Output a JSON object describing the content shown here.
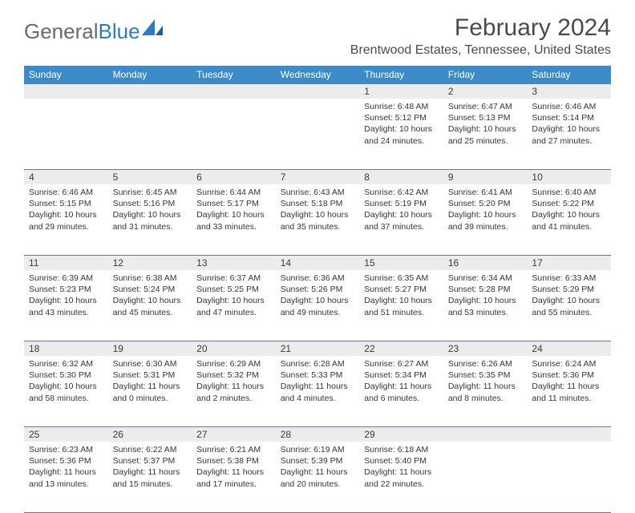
{
  "brand": {
    "part1": "General",
    "part2": "Blue"
  },
  "title": "February 2024",
  "location": "Brentwood Estates, Tennessee, United States",
  "colors": {
    "header_bg": "#3b8bc9",
    "header_text": "#ffffff",
    "daynum_bg": "#ececec",
    "rule": "#5c7fa0",
    "body_text": "#353535",
    "title_text": "#4a4a4a",
    "brand_gray": "#6a6a6a",
    "brand_blue": "#2b7cc0",
    "page_bg": "#ffffff"
  },
  "layout": {
    "columns": 7,
    "font_family": "Arial",
    "body_fontsize_pt": 8,
    "title_fontsize_pt": 22,
    "location_fontsize_pt": 12,
    "weekday_fontsize_pt": 9
  },
  "weekdays": [
    "Sunday",
    "Monday",
    "Tuesday",
    "Wednesday",
    "Thursday",
    "Friday",
    "Saturday"
  ],
  "weeks": [
    [
      null,
      null,
      null,
      null,
      {
        "n": "1",
        "sr": "Sunrise: 6:48 AM",
        "ss": "Sunset: 5:12 PM",
        "d1": "Daylight: 10 hours",
        "d2": "and 24 minutes."
      },
      {
        "n": "2",
        "sr": "Sunrise: 6:47 AM",
        "ss": "Sunset: 5:13 PM",
        "d1": "Daylight: 10 hours",
        "d2": "and 25 minutes."
      },
      {
        "n": "3",
        "sr": "Sunrise: 6:46 AM",
        "ss": "Sunset: 5:14 PM",
        "d1": "Daylight: 10 hours",
        "d2": "and 27 minutes."
      }
    ],
    [
      {
        "n": "4",
        "sr": "Sunrise: 6:46 AM",
        "ss": "Sunset: 5:15 PM",
        "d1": "Daylight: 10 hours",
        "d2": "and 29 minutes."
      },
      {
        "n": "5",
        "sr": "Sunrise: 6:45 AM",
        "ss": "Sunset: 5:16 PM",
        "d1": "Daylight: 10 hours",
        "d2": "and 31 minutes."
      },
      {
        "n": "6",
        "sr": "Sunrise: 6:44 AM",
        "ss": "Sunset: 5:17 PM",
        "d1": "Daylight: 10 hours",
        "d2": "and 33 minutes."
      },
      {
        "n": "7",
        "sr": "Sunrise: 6:43 AM",
        "ss": "Sunset: 5:18 PM",
        "d1": "Daylight: 10 hours",
        "d2": "and 35 minutes."
      },
      {
        "n": "8",
        "sr": "Sunrise: 6:42 AM",
        "ss": "Sunset: 5:19 PM",
        "d1": "Daylight: 10 hours",
        "d2": "and 37 minutes."
      },
      {
        "n": "9",
        "sr": "Sunrise: 6:41 AM",
        "ss": "Sunset: 5:20 PM",
        "d1": "Daylight: 10 hours",
        "d2": "and 39 minutes."
      },
      {
        "n": "10",
        "sr": "Sunrise: 6:40 AM",
        "ss": "Sunset: 5:22 PM",
        "d1": "Daylight: 10 hours",
        "d2": "and 41 minutes."
      }
    ],
    [
      {
        "n": "11",
        "sr": "Sunrise: 6:39 AM",
        "ss": "Sunset: 5:23 PM",
        "d1": "Daylight: 10 hours",
        "d2": "and 43 minutes."
      },
      {
        "n": "12",
        "sr": "Sunrise: 6:38 AM",
        "ss": "Sunset: 5:24 PM",
        "d1": "Daylight: 10 hours",
        "d2": "and 45 minutes."
      },
      {
        "n": "13",
        "sr": "Sunrise: 6:37 AM",
        "ss": "Sunset: 5:25 PM",
        "d1": "Daylight: 10 hours",
        "d2": "and 47 minutes."
      },
      {
        "n": "14",
        "sr": "Sunrise: 6:36 AM",
        "ss": "Sunset: 5:26 PM",
        "d1": "Daylight: 10 hours",
        "d2": "and 49 minutes."
      },
      {
        "n": "15",
        "sr": "Sunrise: 6:35 AM",
        "ss": "Sunset: 5:27 PM",
        "d1": "Daylight: 10 hours",
        "d2": "and 51 minutes."
      },
      {
        "n": "16",
        "sr": "Sunrise: 6:34 AM",
        "ss": "Sunset: 5:28 PM",
        "d1": "Daylight: 10 hours",
        "d2": "and 53 minutes."
      },
      {
        "n": "17",
        "sr": "Sunrise: 6:33 AM",
        "ss": "Sunset: 5:29 PM",
        "d1": "Daylight: 10 hours",
        "d2": "and 55 minutes."
      }
    ],
    [
      {
        "n": "18",
        "sr": "Sunrise: 6:32 AM",
        "ss": "Sunset: 5:30 PM",
        "d1": "Daylight: 10 hours",
        "d2": "and 58 minutes."
      },
      {
        "n": "19",
        "sr": "Sunrise: 6:30 AM",
        "ss": "Sunset: 5:31 PM",
        "d1": "Daylight: 11 hours",
        "d2": "and 0 minutes."
      },
      {
        "n": "20",
        "sr": "Sunrise: 6:29 AM",
        "ss": "Sunset: 5:32 PM",
        "d1": "Daylight: 11 hours",
        "d2": "and 2 minutes."
      },
      {
        "n": "21",
        "sr": "Sunrise: 6:28 AM",
        "ss": "Sunset: 5:33 PM",
        "d1": "Daylight: 11 hours",
        "d2": "and 4 minutes."
      },
      {
        "n": "22",
        "sr": "Sunrise: 6:27 AM",
        "ss": "Sunset: 5:34 PM",
        "d1": "Daylight: 11 hours",
        "d2": "and 6 minutes."
      },
      {
        "n": "23",
        "sr": "Sunrise: 6:26 AM",
        "ss": "Sunset: 5:35 PM",
        "d1": "Daylight: 11 hours",
        "d2": "and 8 minutes."
      },
      {
        "n": "24",
        "sr": "Sunrise: 6:24 AM",
        "ss": "Sunset: 5:36 PM",
        "d1": "Daylight: 11 hours",
        "d2": "and 11 minutes."
      }
    ],
    [
      {
        "n": "25",
        "sr": "Sunrise: 6:23 AM",
        "ss": "Sunset: 5:36 PM",
        "d1": "Daylight: 11 hours",
        "d2": "and 13 minutes."
      },
      {
        "n": "26",
        "sr": "Sunrise: 6:22 AM",
        "ss": "Sunset: 5:37 PM",
        "d1": "Daylight: 11 hours",
        "d2": "and 15 minutes."
      },
      {
        "n": "27",
        "sr": "Sunrise: 6:21 AM",
        "ss": "Sunset: 5:38 PM",
        "d1": "Daylight: 11 hours",
        "d2": "and 17 minutes."
      },
      {
        "n": "28",
        "sr": "Sunrise: 6:19 AM",
        "ss": "Sunset: 5:39 PM",
        "d1": "Daylight: 11 hours",
        "d2": "and 20 minutes."
      },
      {
        "n": "29",
        "sr": "Sunrise: 6:18 AM",
        "ss": "Sunset: 5:40 PM",
        "d1": "Daylight: 11 hours",
        "d2": "and 22 minutes."
      },
      null,
      null
    ]
  ]
}
